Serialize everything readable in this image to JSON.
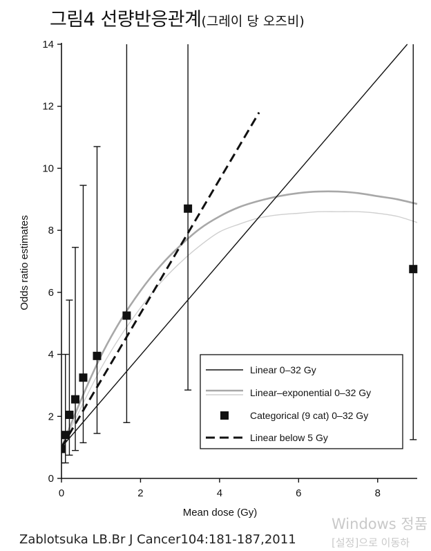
{
  "title": {
    "main": "그림4 선량반응관계",
    "sub": "(그레이 당 오즈비)"
  },
  "citation": "Zablotsuka LB.Br J Cancer104:181-187,2011",
  "watermark": {
    "line1": "Windows 정품",
    "line2": "[설정]으로 이동하"
  },
  "chart_data": {
    "type": "scatter",
    "xlabel": "Mean dose (Gy)",
    "ylabel": "Odds ratio estimates",
    "xlim": [
      0,
      9
    ],
    "ylim": [
      0,
      14
    ],
    "xticks": [
      0,
      2,
      4,
      6,
      8
    ],
    "yticks": [
      0,
      2,
      4,
      6,
      8,
      10,
      12,
      14
    ],
    "grid": false,
    "legend_position": "bottom-right",
    "legend": [
      {
        "label": "Linear 0–32 Gy",
        "style": "solid-thin-black"
      },
      {
        "label": "Linear–exponential 0–32 Gy",
        "style": "solid-gray"
      },
      {
        "label": "Categorical (9 cat) 0–32 Gy",
        "style": "square-marker"
      },
      {
        "label": "Linear below 5 Gy",
        "style": "dashed-black"
      }
    ],
    "colors": {
      "linear": "#111111",
      "linear_exponential": "#a8a8a8",
      "linear_exponential_band": "#cfcfcf",
      "categorical": "#111111",
      "linear_below_5": "#111111"
    },
    "series": [
      {
        "name": "Categorical (9 cat) 0–32 Gy",
        "type": "points_with_error_bars",
        "points": [
          {
            "x": 0.0,
            "y": 0.95,
            "lo": 0.5,
            "hi": 1.35
          },
          {
            "x": 0.1,
            "y": 1.4,
            "lo": 0.5,
            "hi": 4.0
          },
          {
            "x": 0.2,
            "y": 2.05,
            "lo": 0.75,
            "hi": 5.75
          },
          {
            "x": 0.35,
            "y": 2.55,
            "lo": 0.9,
            "hi": 7.45
          },
          {
            "x": 0.55,
            "y": 3.25,
            "lo": 1.15,
            "hi": 9.45
          },
          {
            "x": 0.9,
            "y": 3.95,
            "lo": 1.45,
            "hi": 10.7
          },
          {
            "x": 1.65,
            "y": 5.25,
            "lo": 1.8,
            "hi": 14.0
          },
          {
            "x": 3.2,
            "y": 8.7,
            "lo": 2.85,
            "hi": 14.0
          },
          {
            "x": 8.9,
            "y": 6.75,
            "lo": 1.25,
            "hi": 14.0
          }
        ]
      },
      {
        "name": "Linear 0–32 Gy",
        "type": "line",
        "x": [
          0,
          8.75
        ],
        "y": [
          1.0,
          14.0
        ]
      },
      {
        "name": "Linear below 5 Gy",
        "type": "line",
        "x": [
          0,
          5.0
        ],
        "y": [
          1.0,
          11.8
        ]
      },
      {
        "name": "Linear–exponential 0–32 Gy",
        "type": "line",
        "x": [
          0,
          0.5,
          1,
          1.5,
          2,
          2.5,
          3,
          3.5,
          4,
          4.5,
          5,
          5.5,
          6,
          6.5,
          7,
          7.5,
          8,
          8.5,
          9
        ],
        "y": [
          1.0,
          2.55,
          3.95,
          5.1,
          6.05,
          6.85,
          7.5,
          8.05,
          8.45,
          8.75,
          8.95,
          9.1,
          9.2,
          9.25,
          9.25,
          9.2,
          9.1,
          9.0,
          8.85
        ]
      },
      {
        "name": "Linear–exponential 0–32 Gy (lower)",
        "type": "line",
        "x": [
          0,
          0.5,
          1,
          1.5,
          2,
          2.5,
          3,
          3.5,
          4,
          4.5,
          5,
          5.5,
          6,
          6.5,
          7,
          7.5,
          8,
          8.5,
          9
        ],
        "y": [
          1.0,
          2.3,
          3.55,
          4.6,
          5.5,
          6.3,
          6.95,
          7.5,
          7.95,
          8.2,
          8.4,
          8.5,
          8.55,
          8.6,
          8.6,
          8.6,
          8.55,
          8.45,
          8.25
        ]
      }
    ]
  }
}
